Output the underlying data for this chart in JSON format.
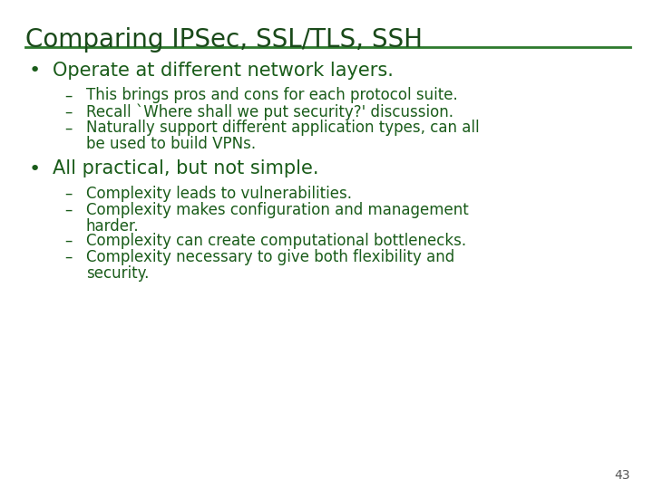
{
  "title": "Comparing IPSec, SSL/TLS, SSH",
  "title_color": "#1a4a1a",
  "title_fontsize": 20,
  "line_color": "#2d7a2d",
  "bg_color": "#ffffff",
  "text_color": "#1a5c1a",
  "bullet_fontsize": 15,
  "sub_fontsize": 12,
  "page_number": "43",
  "bullets": [
    {
      "text": "Operate at different network layers.",
      "subs": [
        [
          "This brings pros and cons for each protocol suite."
        ],
        [
          "Recall `Where shall we put security?' discussion."
        ],
        [
          "Naturally support different application types, can all",
          "be used to build VPNs."
        ]
      ]
    },
    {
      "text": "All practical, but not simple.",
      "subs": [
        [
          "Complexity leads to vulnerabilities."
        ],
        [
          "Complexity makes configuration and management",
          "harder."
        ],
        [
          "Complexity can create computational bottlenecks."
        ],
        [
          "Complexity necessary to give both flexibility and",
          "security."
        ]
      ]
    }
  ]
}
